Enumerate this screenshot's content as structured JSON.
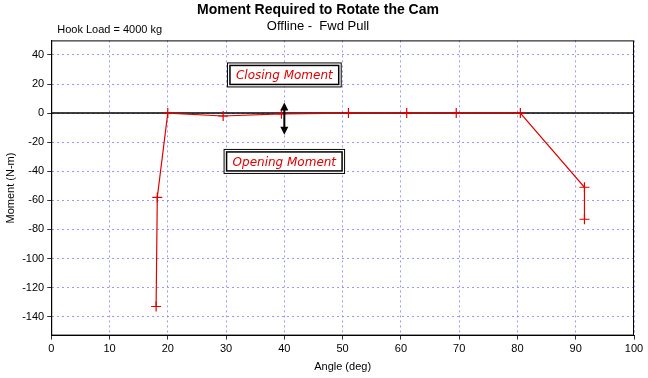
{
  "chart_data": {
    "type": "line",
    "title": "Moment Required to Rotate the Cam",
    "subtitle": "Offline -  Fwd Pull",
    "annotations": [
      "Hook Load = 4000 kg",
      "Closing Moment",
      "Opening Moment"
    ],
    "x_label": "Angle (deg)",
    "y_label": "Moment (N-m)",
    "x": [
      18,
      18.2,
      20,
      29.5,
      39.5,
      51,
      61,
      69.5,
      80.5,
      91.5,
      91.5
    ],
    "values": [
      -133,
      -58,
      0,
      -2,
      -0.5,
      0,
      0,
      0,
      0,
      -51,
      -73
    ],
    "color": "#e00000",
    "marker": "cross",
    "xlim": [
      0,
      100
    ],
    "xticks": [
      0,
      10,
      20,
      30,
      40,
      50,
      60,
      70,
      80,
      90,
      100
    ],
    "ylim": [
      -153,
      50
    ],
    "yticks": [
      -140,
      -120,
      -100,
      -80,
      -60,
      -40,
      -20,
      0,
      20,
      40
    ],
    "grid": true
  }
}
